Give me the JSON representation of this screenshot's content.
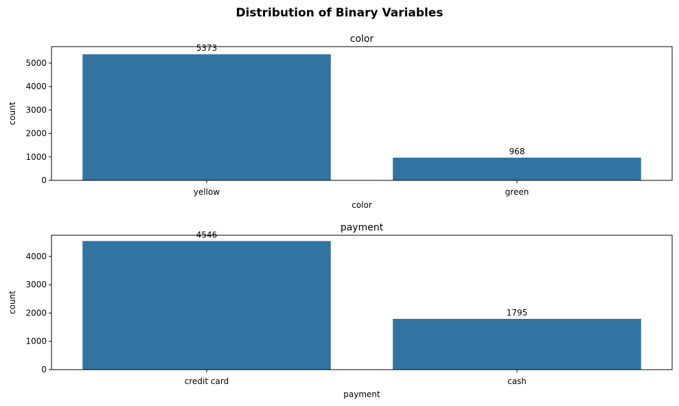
{
  "figure": {
    "suptitle": "Distribution of Binary Variables"
  },
  "colors": {
    "bar": "#3274a1",
    "axis": "#000000",
    "background": "#ffffff"
  },
  "chart_data": [
    {
      "type": "bar",
      "title": "color",
      "xlabel": "color",
      "ylabel": "count",
      "categories": [
        "yellow",
        "green"
      ],
      "values": [
        5373,
        968
      ],
      "data_labels": [
        "5373",
        "968"
      ],
      "ylim": [
        0,
        5700
      ],
      "yticks": [
        0,
        1000,
        2000,
        3000,
        4000,
        5000
      ],
      "grid": false,
      "legend": "none"
    },
    {
      "type": "bar",
      "title": "payment",
      "xlabel": "payment",
      "ylabel": "count",
      "categories": [
        "credit card",
        "cash"
      ],
      "values": [
        4546,
        1795
      ],
      "data_labels": [
        "4546",
        "1795"
      ],
      "ylim": [
        0,
        4750
      ],
      "yticks": [
        0,
        1000,
        2000,
        3000,
        4000
      ],
      "grid": false,
      "legend": "none"
    }
  ]
}
